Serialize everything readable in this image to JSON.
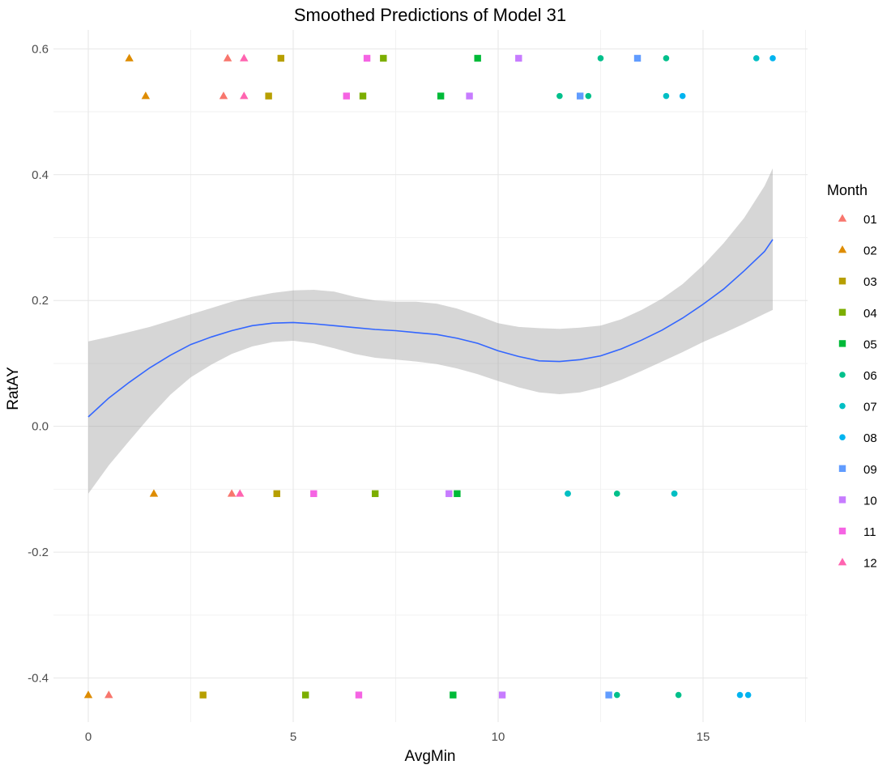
{
  "chart_data": {
    "type": "scatter",
    "title": "Smoothed Predictions of Model 31",
    "xlabel": "AvgMin",
    "ylabel": "RatAY",
    "xlim": [
      -0.85,
      17.55
    ],
    "ylim": [
      -0.47,
      0.63
    ],
    "x_ticks": [
      0,
      5,
      10,
      15
    ],
    "x_tick_labels": [
      "0",
      "5",
      "10",
      "15"
    ],
    "y_ticks": [
      -0.4,
      -0.2,
      0.0,
      0.2,
      0.4,
      0.6
    ],
    "y_tick_labels": [
      "-0.4",
      "-0.2",
      "0.0",
      "0.2",
      "0.4",
      "0.6"
    ],
    "grid": true,
    "legend": {
      "title": "Month",
      "position": "right",
      "entries": [
        {
          "label": "01",
          "color": "#F8766D",
          "shape": "triangle"
        },
        {
          "label": "02",
          "color": "#DE8C00",
          "shape": "triangle"
        },
        {
          "label": "03",
          "color": "#B79F00",
          "shape": "square"
        },
        {
          "label": "04",
          "color": "#7CAE00",
          "shape": "square"
        },
        {
          "label": "05",
          "color": "#00BA38",
          "shape": "square"
        },
        {
          "label": "06",
          "color": "#00C08B",
          "shape": "circle"
        },
        {
          "label": "07",
          "color": "#00BFC4",
          "shape": "circle"
        },
        {
          "label": "08",
          "color": "#00B4F0",
          "shape": "circle"
        },
        {
          "label": "09",
          "color": "#619CFF",
          "shape": "square"
        },
        {
          "label": "10",
          "color": "#C77CFF",
          "shape": "square"
        },
        {
          "label": "11",
          "color": "#F564E3",
          "shape": "square"
        },
        {
          "label": "12",
          "color": "#FF64B0",
          "shape": "triangle"
        }
      ]
    },
    "series": [
      {
        "name": "01",
        "points": [
          [
            3.3,
            0.525
          ],
          [
            3.4,
            0.585
          ],
          [
            3.5,
            -0.107
          ],
          [
            0.5,
            -0.427
          ]
        ]
      },
      {
        "name": "02",
        "points": [
          [
            1.0,
            0.585
          ],
          [
            1.4,
            0.525
          ],
          [
            1.6,
            -0.107
          ],
          [
            0.0,
            -0.427
          ]
        ]
      },
      {
        "name": "03",
        "points": [
          [
            4.7,
            0.585
          ],
          [
            4.4,
            0.525
          ],
          [
            4.6,
            -0.107
          ],
          [
            2.8,
            -0.427
          ]
        ]
      },
      {
        "name": "04",
        "points": [
          [
            7.2,
            0.585
          ],
          [
            6.7,
            0.525
          ],
          [
            7.0,
            -0.107
          ],
          [
            5.3,
            -0.427
          ]
        ]
      },
      {
        "name": "05",
        "points": [
          [
            9.5,
            0.585
          ],
          [
            8.6,
            0.525
          ],
          [
            9.0,
            -0.107
          ],
          [
            8.9,
            -0.427
          ]
        ]
      },
      {
        "name": "06",
        "points": [
          [
            12.5,
            0.585
          ],
          [
            14.1,
            0.585
          ],
          [
            11.5,
            0.525
          ],
          [
            12.2,
            0.525
          ],
          [
            11.7,
            -0.107
          ],
          [
            12.9,
            -0.107
          ],
          [
            14.3,
            -0.107
          ],
          [
            12.9,
            -0.427
          ],
          [
            14.4,
            -0.427
          ]
        ]
      },
      {
        "name": "07",
        "points": [
          [
            16.3,
            0.585
          ],
          [
            14.1,
            0.525
          ],
          [
            11.7,
            -0.107
          ],
          [
            14.3,
            -0.107
          ]
        ]
      },
      {
        "name": "08",
        "points": [
          [
            16.7,
            0.585
          ],
          [
            14.5,
            0.525
          ],
          [
            15.9,
            -0.427
          ],
          [
            16.1,
            -0.427
          ]
        ]
      },
      {
        "name": "09",
        "points": [
          [
            13.4,
            0.585
          ],
          [
            12.0,
            0.525
          ],
          [
            12.7,
            -0.427
          ]
        ]
      },
      {
        "name": "10",
        "points": [
          [
            10.5,
            0.585
          ],
          [
            9.3,
            0.525
          ],
          [
            8.8,
            -0.107
          ],
          [
            10.1,
            -0.427
          ]
        ]
      },
      {
        "name": "11",
        "points": [
          [
            6.8,
            0.585
          ],
          [
            6.3,
            0.525
          ],
          [
            5.5,
            -0.107
          ],
          [
            6.6,
            -0.427
          ]
        ]
      },
      {
        "name": "12",
        "points": [
          [
            3.8,
            0.585
          ],
          [
            3.8,
            0.525
          ],
          [
            3.7,
            -0.107
          ]
        ]
      }
    ],
    "smooth": {
      "color": "#3366FF",
      "band_color": "#999999",
      "x": [
        0.0,
        0.5,
        1.0,
        1.5,
        2.0,
        2.5,
        3.0,
        3.5,
        4.0,
        4.5,
        5.0,
        5.5,
        6.0,
        6.5,
        7.0,
        7.5,
        8.0,
        8.5,
        9.0,
        9.5,
        10.0,
        10.5,
        11.0,
        11.5,
        12.0,
        12.5,
        13.0,
        13.5,
        14.0,
        14.5,
        15.0,
        15.5,
        16.0,
        16.5,
        16.7
      ],
      "y": [
        0.015,
        0.045,
        0.07,
        0.093,
        0.113,
        0.13,
        0.142,
        0.152,
        0.16,
        0.164,
        0.165,
        0.163,
        0.16,
        0.157,
        0.154,
        0.152,
        0.149,
        0.146,
        0.14,
        0.132,
        0.12,
        0.111,
        0.104,
        0.103,
        0.106,
        0.112,
        0.123,
        0.137,
        0.153,
        0.172,
        0.194,
        0.218,
        0.247,
        0.278,
        0.297
      ],
      "lower": [
        -0.107,
        -0.062,
        -0.023,
        0.015,
        0.05,
        0.078,
        0.098,
        0.115,
        0.127,
        0.134,
        0.136,
        0.132,
        0.124,
        0.115,
        0.109,
        0.106,
        0.103,
        0.099,
        0.092,
        0.083,
        0.072,
        0.062,
        0.054,
        0.051,
        0.054,
        0.062,
        0.074,
        0.088,
        0.103,
        0.118,
        0.134,
        0.148,
        0.163,
        0.179,
        0.185
      ],
      "upper": [
        0.135,
        0.142,
        0.15,
        0.158,
        0.168,
        0.178,
        0.188,
        0.198,
        0.206,
        0.212,
        0.216,
        0.217,
        0.214,
        0.206,
        0.2,
        0.198,
        0.198,
        0.195,
        0.187,
        0.176,
        0.164,
        0.158,
        0.156,
        0.155,
        0.157,
        0.16,
        0.17,
        0.185,
        0.203,
        0.226,
        0.256,
        0.291,
        0.331,
        0.382,
        0.41
      ]
    }
  }
}
